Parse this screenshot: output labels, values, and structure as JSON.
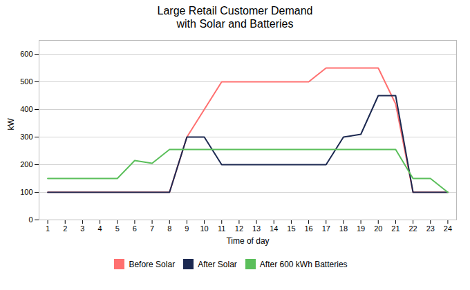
{
  "chart_data": {
    "type": "line",
    "title": "Large Retail Customer Demand\nwith Solar and Batteries",
    "x_label": "Time of day",
    "y_label": "kW",
    "x": [
      1,
      2,
      3,
      4,
      5,
      6,
      7,
      8,
      9,
      10,
      11,
      12,
      13,
      14,
      15,
      16,
      17,
      18,
      19,
      20,
      21,
      22,
      23,
      24
    ],
    "series": [
      {
        "name": "Before Solar",
        "color": "#FF7070",
        "values": [
          100,
          100,
          100,
          100,
          100,
          100,
          100,
          100,
          300,
          400,
          500,
          500,
          500,
          500,
          500,
          500,
          550,
          550,
          550,
          550,
          420,
          100,
          100,
          100
        ]
      },
      {
        "name": "After Solar",
        "color": "#1C2951",
        "values": [
          100,
          100,
          100,
          100,
          100,
          100,
          100,
          100,
          300,
          300,
          200,
          200,
          200,
          200,
          200,
          200,
          200,
          300,
          310,
          450,
          450,
          100,
          100,
          100
        ]
      },
      {
        "name": "After 600 kWh Batteries",
        "color": "#5BBF5B",
        "values": [
          150,
          150,
          150,
          150,
          150,
          215,
          205,
          255,
          255,
          255,
          255,
          255,
          255,
          255,
          255,
          255,
          255,
          255,
          255,
          255,
          255,
          150,
          150,
          100
        ]
      }
    ],
    "xlim": [
      0.5,
      24.5
    ],
    "xticks": [
      1,
      2,
      3,
      4,
      5,
      6,
      7,
      8,
      9,
      10,
      11,
      12,
      13,
      14,
      15,
      16,
      17,
      18,
      19,
      20,
      21,
      22,
      23,
      24
    ],
    "ylim": [
      0,
      650
    ],
    "yticks": [
      0,
      100,
      200,
      300,
      400,
      500,
      600
    ],
    "grid": true,
    "legend": "bottom"
  }
}
